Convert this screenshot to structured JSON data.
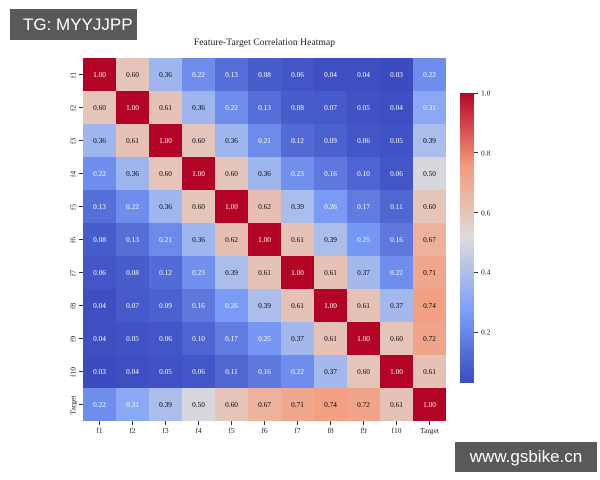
{
  "overlays": {
    "top_left_badge": "TG: MYYJJPP",
    "bottom_right_badge": "www.gsbike.cn",
    "badge_bg": "#595959",
    "badge_text_color": "#ffffff"
  },
  "chart_data": {
    "type": "heatmap",
    "title": "Feature-Target Correlation Heatmap",
    "x_labels": [
      "f1",
      "f2",
      "f3",
      "f4",
      "f5",
      "f6",
      "f7",
      "f8",
      "f9",
      "f10",
      "Target"
    ],
    "y_labels": [
      "f1",
      "f2",
      "f3",
      "f4",
      "f5",
      "f6",
      "f7",
      "f8",
      "f9",
      "f10",
      "Target"
    ],
    "matrix": [
      [
        1.0,
        0.6,
        0.36,
        0.22,
        0.13,
        0.08,
        0.06,
        0.04,
        0.04,
        0.03,
        0.22
      ],
      [
        0.6,
        1.0,
        0.61,
        0.36,
        0.22,
        0.13,
        0.08,
        0.07,
        0.05,
        0.04,
        0.31
      ],
      [
        0.36,
        0.61,
        1.0,
        0.6,
        0.36,
        0.21,
        0.12,
        0.09,
        0.06,
        0.05,
        0.39
      ],
      [
        0.22,
        0.36,
        0.6,
        1.0,
        0.6,
        0.36,
        0.23,
        0.16,
        0.1,
        0.06,
        0.5
      ],
      [
        0.13,
        0.22,
        0.36,
        0.6,
        1.0,
        0.62,
        0.39,
        0.26,
        0.17,
        0.11,
        0.6
      ],
      [
        0.08,
        0.13,
        0.21,
        0.36,
        0.62,
        1.0,
        0.61,
        0.39,
        0.25,
        0.16,
        0.67
      ],
      [
        0.06,
        0.08,
        0.12,
        0.23,
        0.39,
        0.61,
        1.0,
        0.61,
        0.37,
        0.22,
        0.71
      ],
      [
        0.04,
        0.07,
        0.09,
        0.16,
        0.26,
        0.39,
        0.61,
        1.0,
        0.61,
        0.37,
        0.74
      ],
      [
        0.04,
        0.05,
        0.06,
        0.1,
        0.17,
        0.25,
        0.37,
        0.61,
        1.0,
        0.6,
        0.72
      ],
      [
        0.03,
        0.04,
        0.05,
        0.06,
        0.11,
        0.16,
        0.22,
        0.37,
        0.6,
        1.0,
        0.61
      ],
      [
        0.22,
        0.31,
        0.39,
        0.5,
        0.6,
        0.67,
        0.71,
        0.74,
        0.72,
        0.61,
        1.0
      ]
    ],
    "vmin": 0.03,
    "vmax": 1.0,
    "colormap": "coolwarm",
    "colormap_anchors": [
      "#3B4CC0",
      "#7C9FF8",
      "#DDDCDC",
      "#F49A7B",
      "#B40426"
    ],
    "colorbar": {
      "ticks": [
        1.0,
        0.8,
        0.6,
        0.4,
        0.2
      ],
      "tick_labels": [
        "1.0",
        "0.8",
        "0.6",
        "0.4",
        "0.2"
      ]
    },
    "grid": false,
    "legend_position": "right-colorbar"
  }
}
